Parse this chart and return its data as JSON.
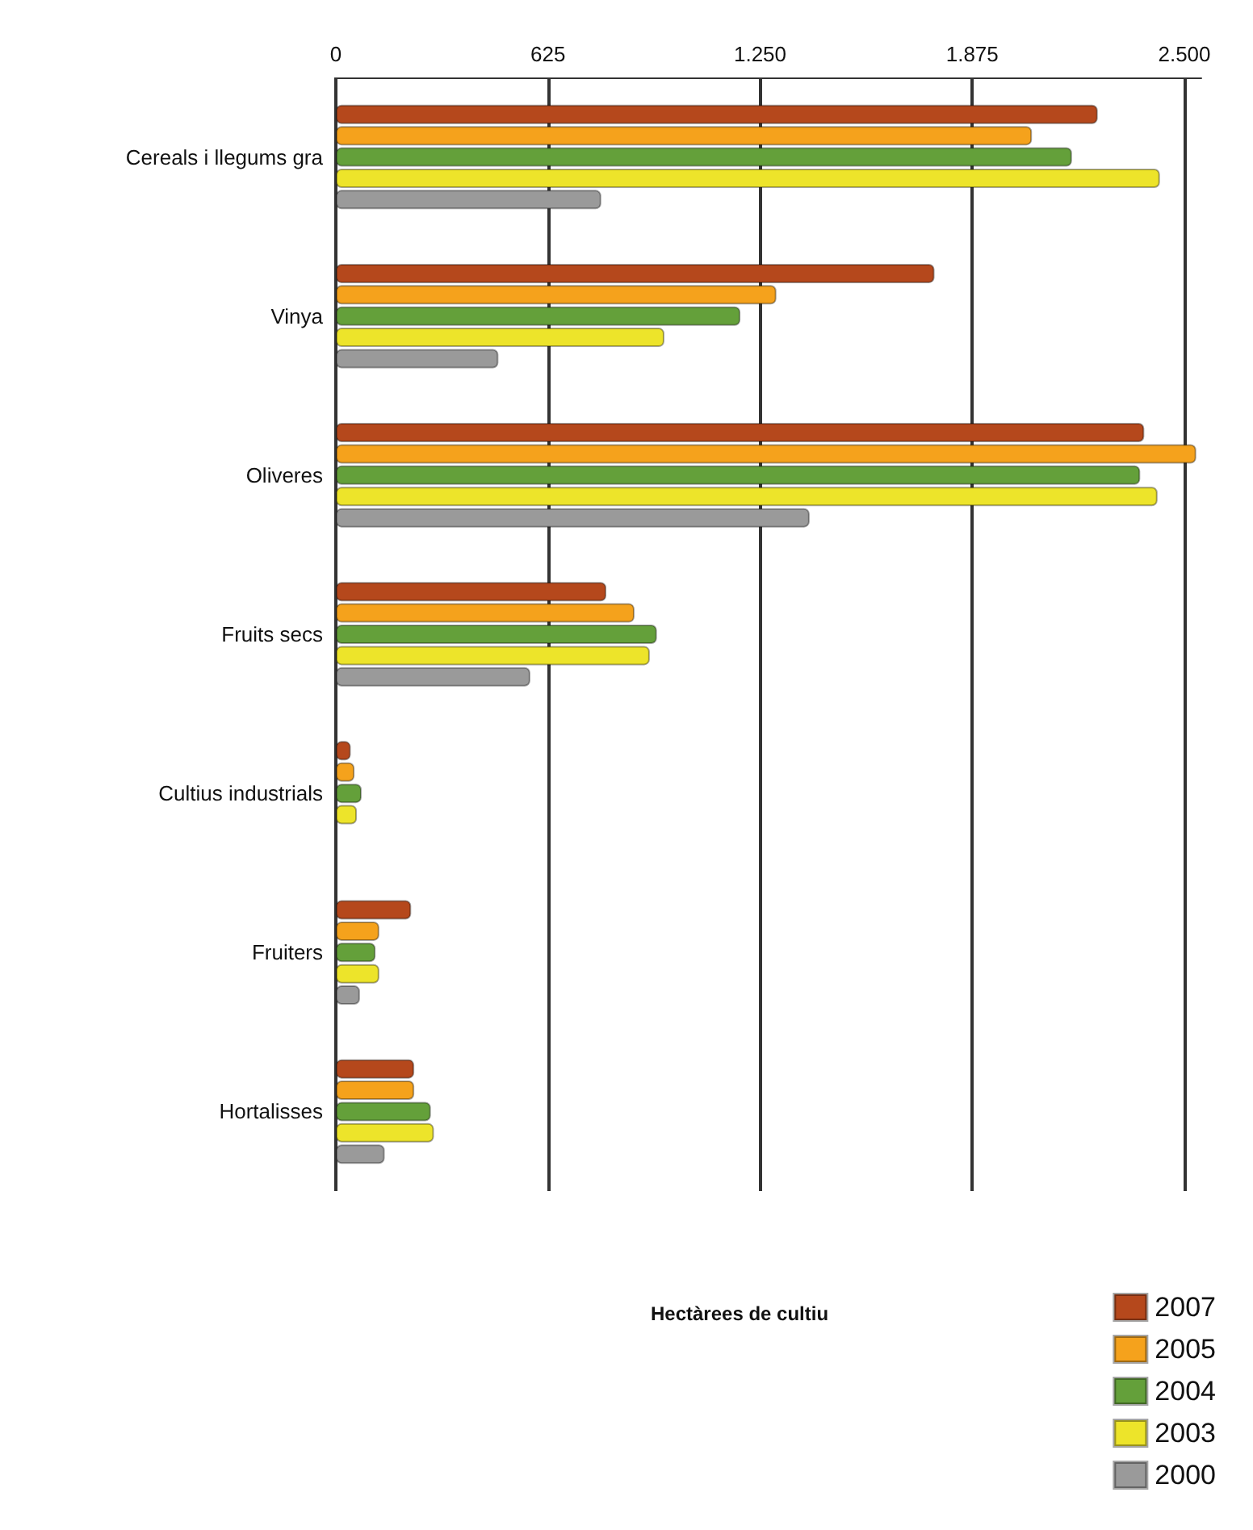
{
  "chart_data": {
    "type": "bar",
    "orientation": "horizontal",
    "annotations": [
      "Hectàrees de cultiu"
    ],
    "categories": [
      "Cereals i llegums gra",
      "Vinya",
      "Oliveres",
      "Fruits secs",
      "Cultius industrials",
      "Fruiters",
      "Hortalisses"
    ],
    "series": [
      {
        "name": "2007",
        "color": "#b5481c",
        "values": [
          2245,
          1764,
          2382,
          797,
          44,
          222,
          231
        ]
      },
      {
        "name": "2005",
        "color": "#f5a21c",
        "values": [
          2051,
          1298,
          2535,
          880,
          55,
          128,
          231
        ]
      },
      {
        "name": "2004",
        "color": "#64a03a",
        "values": [
          2169,
          1192,
          2370,
          946,
          76,
          117,
          280
        ]
      },
      {
        "name": "2003",
        "color": "#ede42a",
        "values": [
          2428,
          968,
          2421,
          925,
          62,
          128,
          289
        ]
      },
      {
        "name": "2000",
        "color": "#9a9a9a",
        "values": [
          782,
          479,
          1396,
          573,
          null,
          71,
          144
        ]
      }
    ],
    "xlim": [
      0,
      2550
    ],
    "xticks": [
      0,
      625,
      {
        "value": 1250,
        "label": "1.250"
      },
      {
        "value": 1875,
        "label": "1.875"
      },
      {
        "value": 2500,
        "label": "2.500"
      }
    ],
    "grid": "x",
    "legend": "bottom right"
  }
}
